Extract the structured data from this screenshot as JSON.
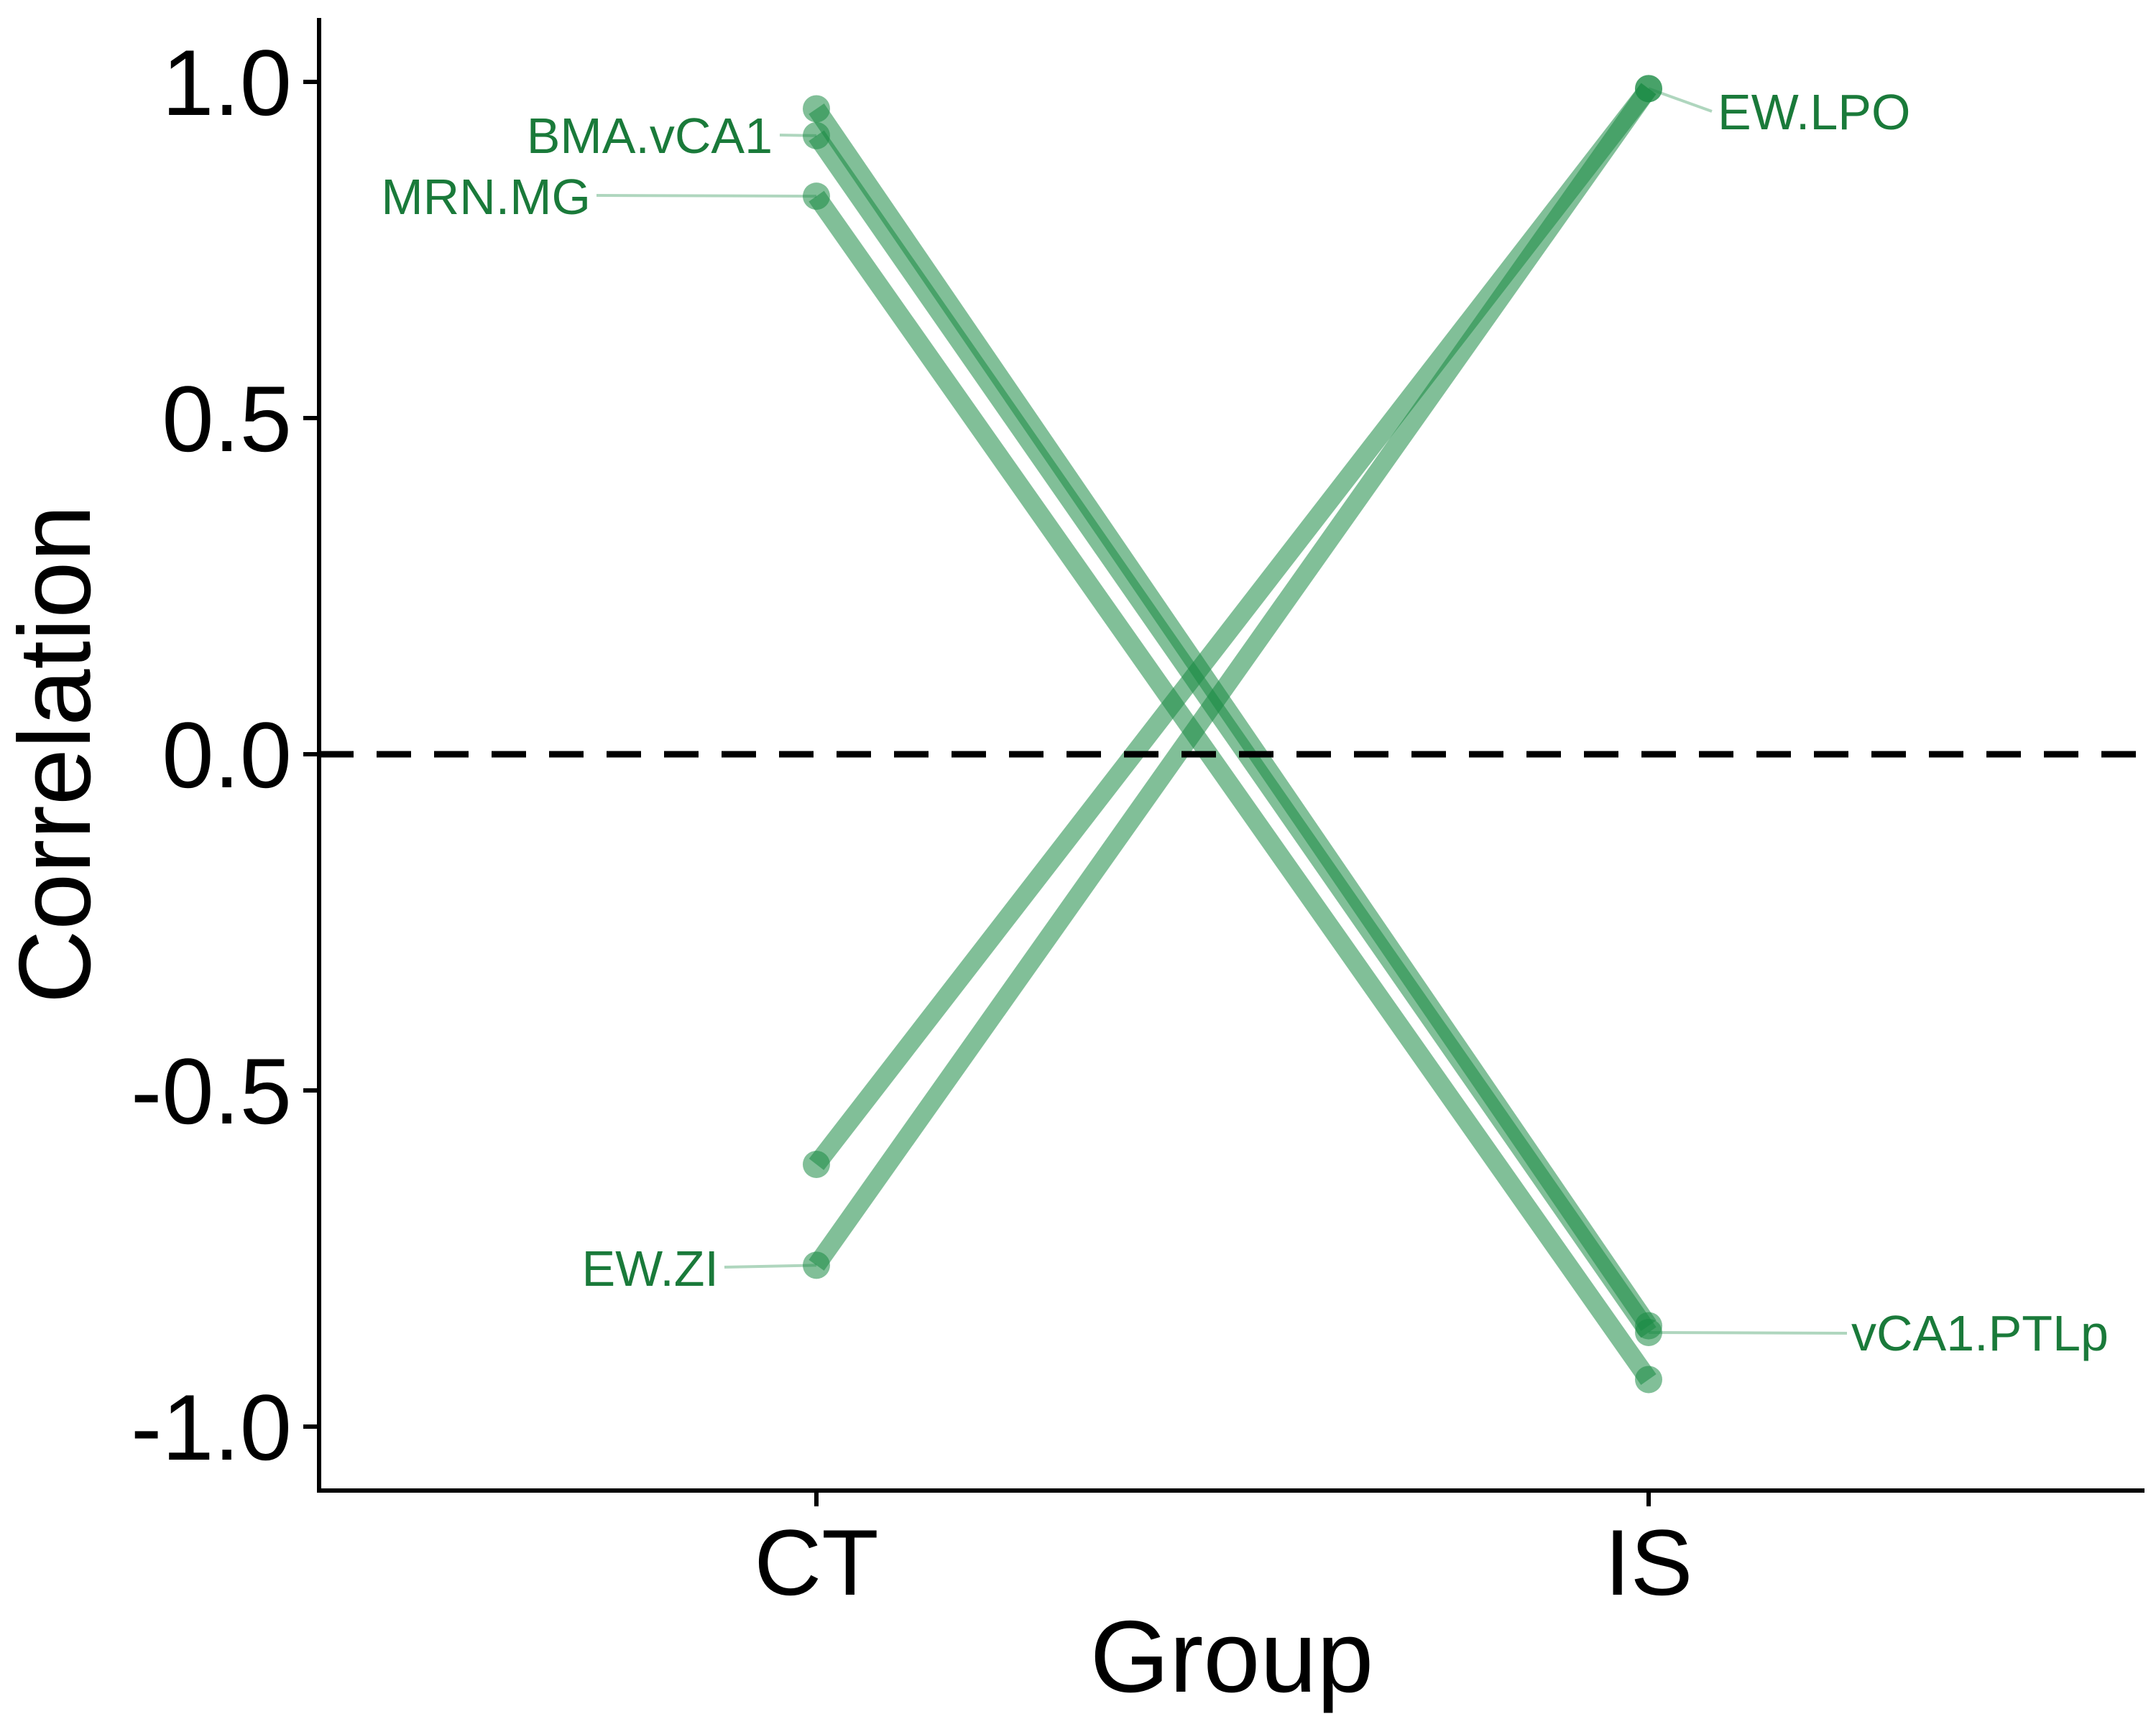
{
  "chart_data": {
    "type": "line",
    "xlabel": "Group",
    "ylabel": "Correlation",
    "categories": [
      "CT",
      "IS"
    ],
    "ylim": [
      -1.1,
      1.1
    ],
    "yticks": [
      "-1.0",
      "-0.5",
      "0.0",
      "0.5",
      "1.0"
    ],
    "ytick_values": [
      -1.0,
      -0.5,
      0.0,
      0.5,
      1.0
    ],
    "reference_line": 0.0,
    "grid": false,
    "legend": "none",
    "color": "#1a8a44",
    "label_color": "#1a7a3a",
    "series": [
      {
        "values": [
          0.96,
          -0.85
        ]
      },
      {
        "values": [
          0.92,
          -0.86
        ]
      },
      {
        "values": [
          0.83,
          -0.93
        ]
      },
      {
        "values": [
          -0.61,
          0.99
        ]
      },
      {
        "values": [
          -0.76,
          0.99
        ]
      }
    ],
    "annotations": [
      {
        "text": "BMA.vCA1",
        "series": 1,
        "side": "CT"
      },
      {
        "text": "MRN.MG",
        "series": 2,
        "side": "CT"
      },
      {
        "text": "EW.ZI",
        "series": 4,
        "side": "CT"
      },
      {
        "text": "EW.LPO",
        "series": 3,
        "side": "IS"
      },
      {
        "text": "vCA1.PTLp",
        "series": 1,
        "side": "IS"
      }
    ]
  }
}
